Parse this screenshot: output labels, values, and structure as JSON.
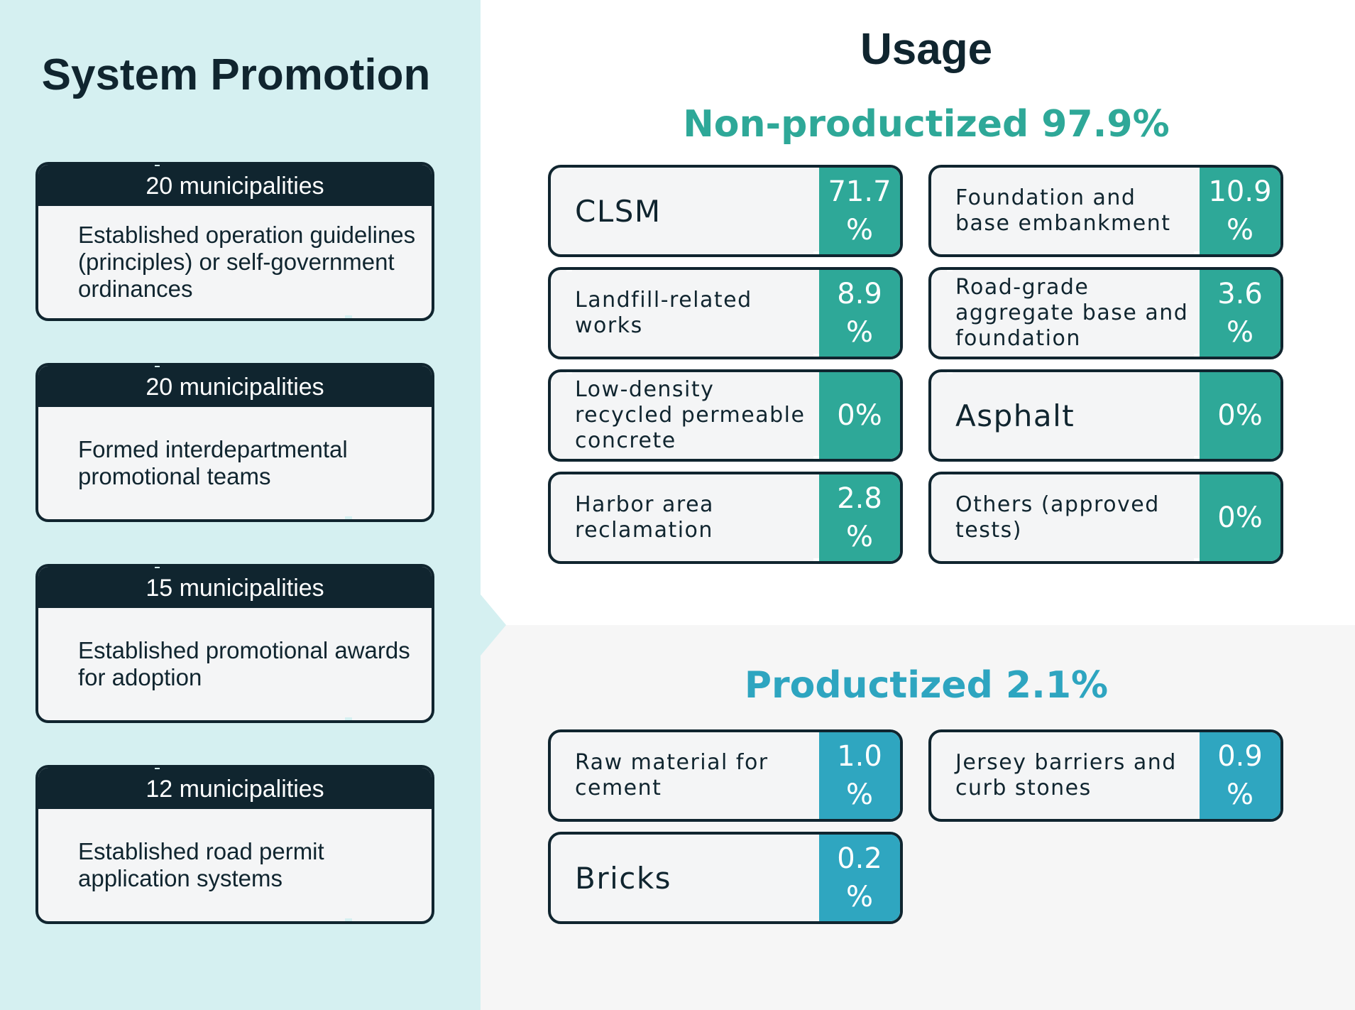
{
  "system_promotion": {
    "title": "System Promotion",
    "items": [
      {
        "count": "20 municipalities",
        "text": "Established operation guidelines (principles) or self-government ordinances"
      },
      {
        "count": "20 municipalities",
        "text": "Formed interdepartmental promotional teams"
      },
      {
        "count": "15 municipalities",
        "text": "Established promotional awards for adoption"
      },
      {
        "count": "12 municipalities",
        "text": "Established road permit application systems"
      }
    ]
  },
  "usage": {
    "title": "Usage",
    "non_productized": {
      "title": "Non-productized 97.9%",
      "items": [
        {
          "label": "CLSM",
          "value": "71.7\n%"
        },
        {
          "label": "Foundation and base embankment",
          "value": "10.9\n%"
        },
        {
          "label": "Landfill-related works",
          "value": "8.9\n%"
        },
        {
          "label": "Road-grade aggregate base and foundation",
          "value": "3.6\n%"
        },
        {
          "label": "Low-density recycled permeable concrete",
          "value": "0%"
        },
        {
          "label": "Asphalt",
          "value": "0%"
        },
        {
          "label": "Harbor area reclamation",
          "value": "2.8\n%"
        },
        {
          "label": "Others (approved tests)",
          "value": "0%"
        }
      ]
    },
    "productized": {
      "title": "Productized 2.1%",
      "items": [
        {
          "label": "Raw material for cement",
          "value": "1.0\n%"
        },
        {
          "label": "Jersey barriers and curb stones",
          "value": "0.9\n%"
        },
        {
          "label": "Bricks",
          "value": "0.2\n%"
        }
      ]
    }
  },
  "colors": {
    "dark": "#10252f",
    "teal": "#2ea898",
    "blue": "#2fa6c0",
    "left_panel": "#d5f0f1",
    "card_bg": "#f4f5f6"
  }
}
